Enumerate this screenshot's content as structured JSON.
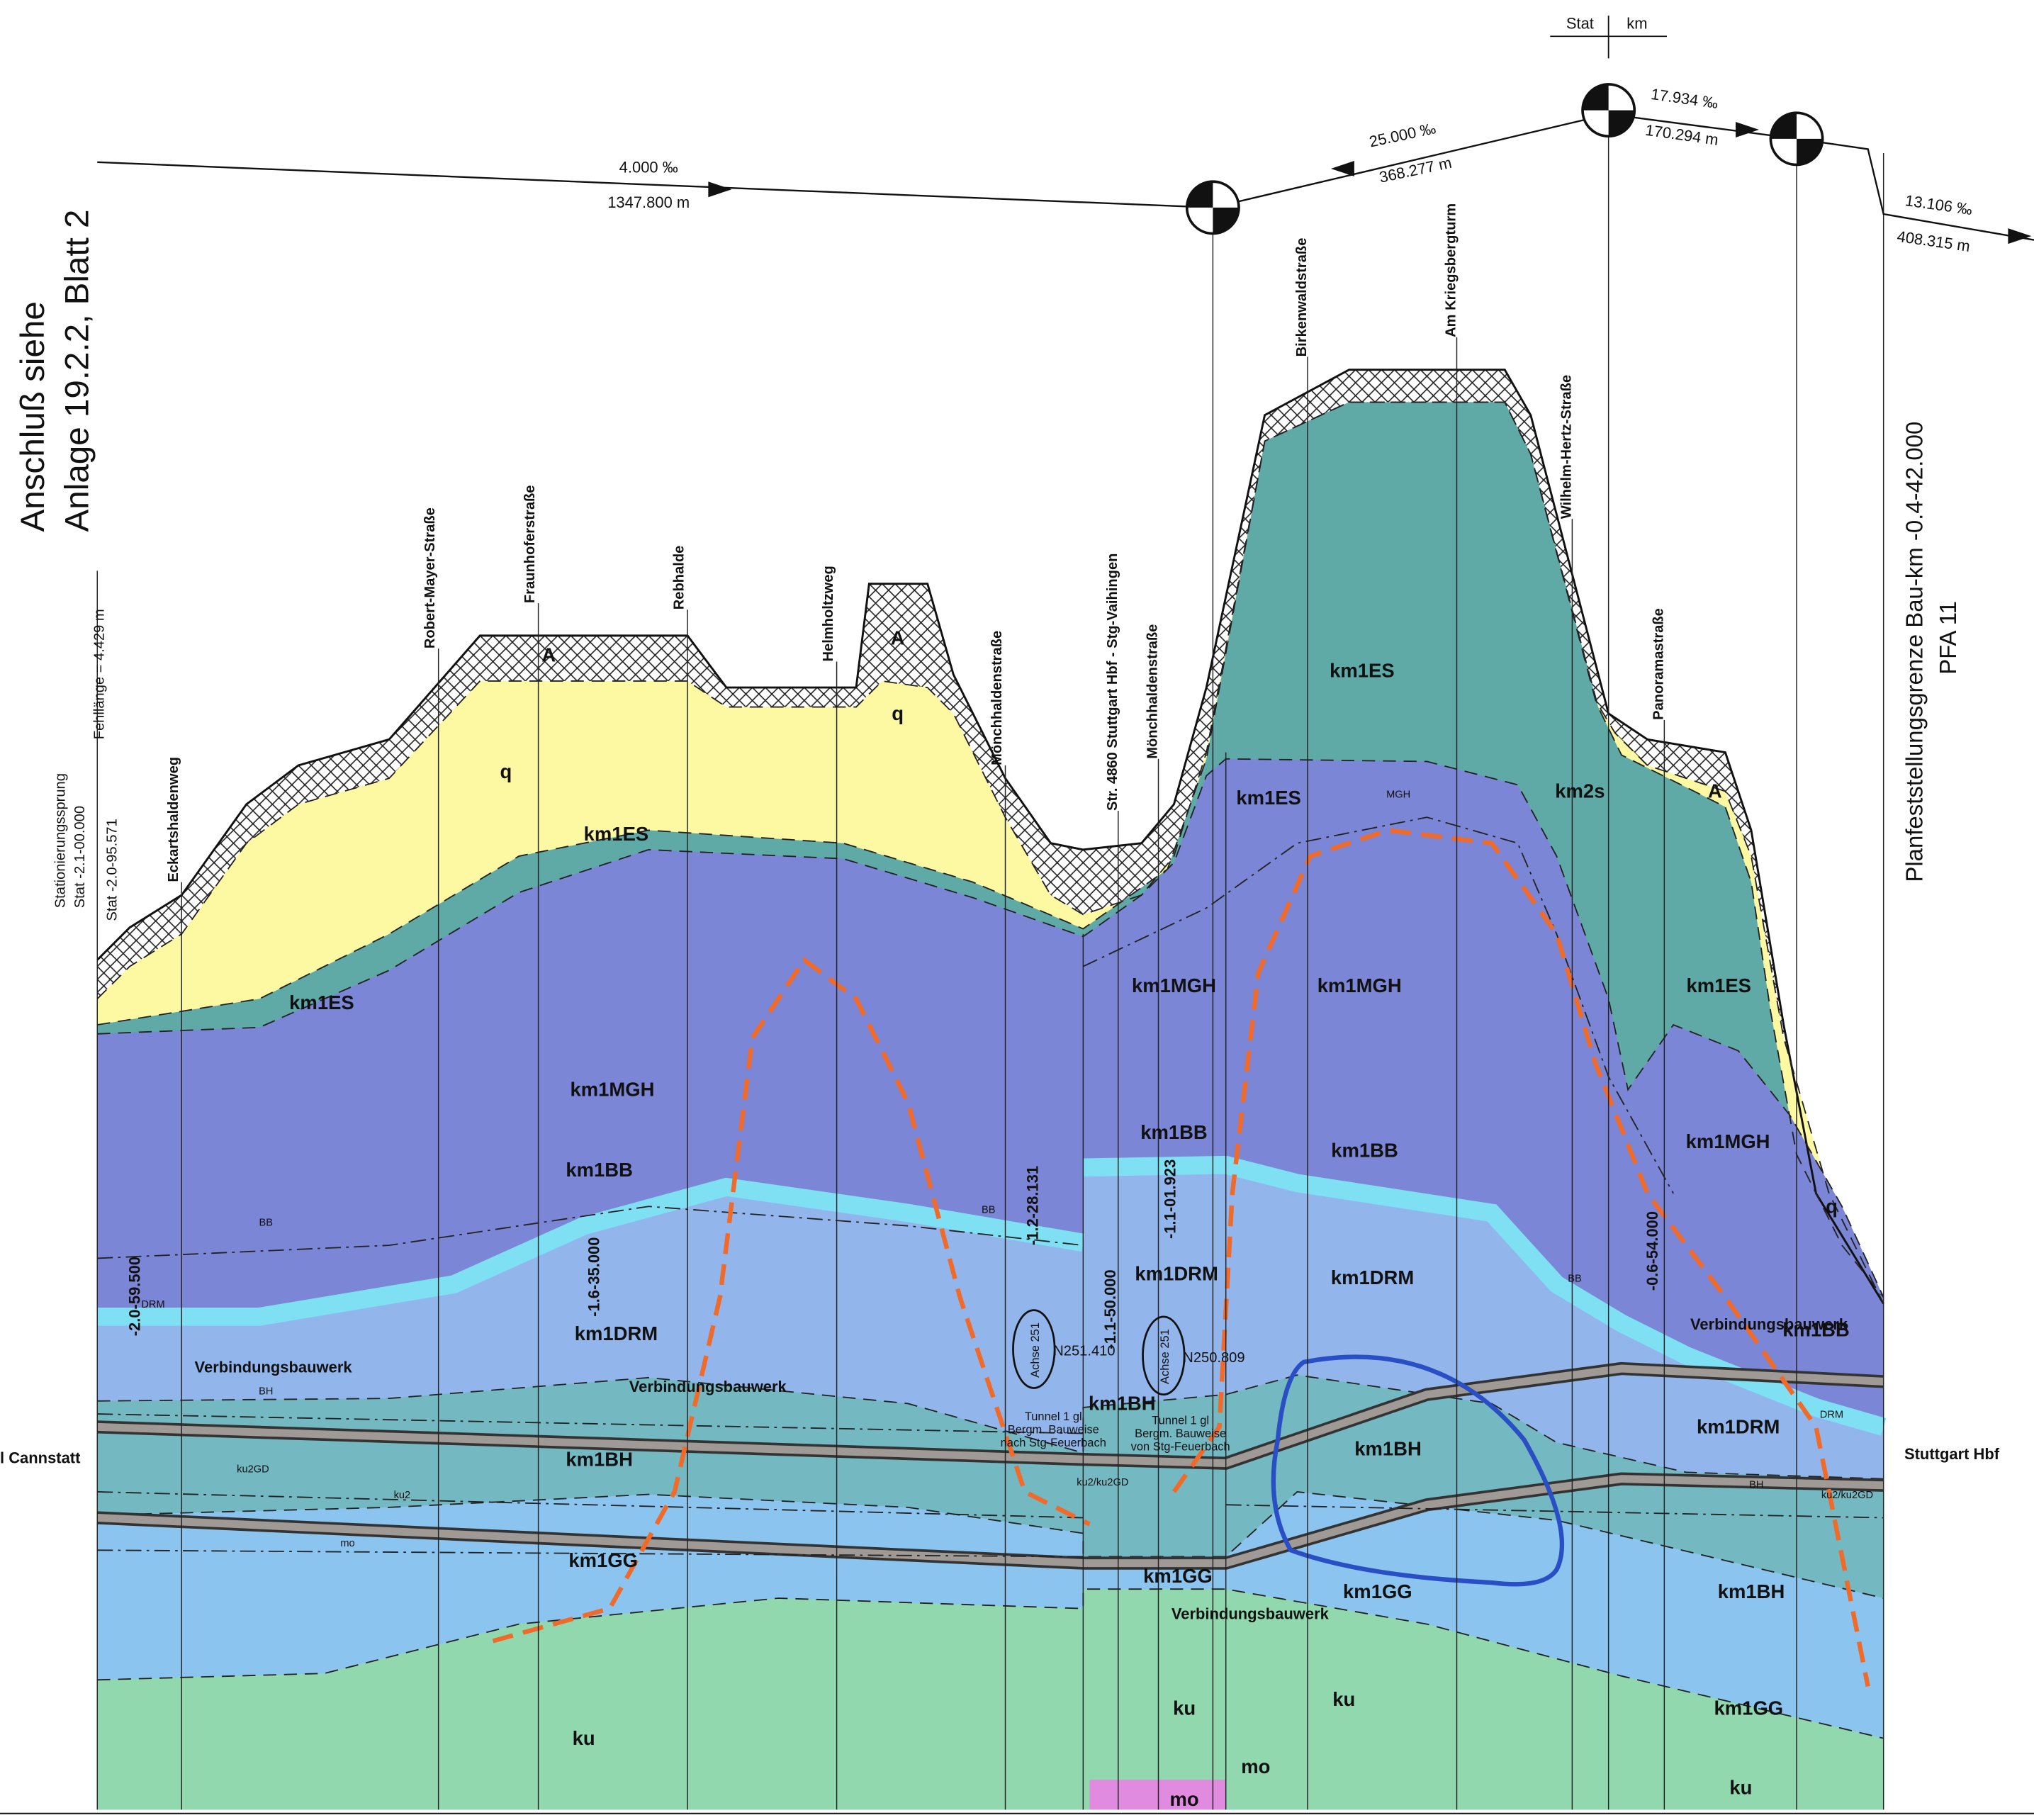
{
  "header": {
    "stat": "Stat",
    "km": "km"
  },
  "gradients": [
    {
      "slope": "4.000 ‰",
      "length": "1347.800 m"
    },
    {
      "slope": "25.000 ‰",
      "length": "368.277 m"
    },
    {
      "slope": "17.934 ‰",
      "length": "170.294 m"
    },
    {
      "slope": "13.106 ‰",
      "length": "408.315 m"
    }
  ],
  "connection_note": [
    "Anschluß siehe",
    "Anlage 19.2.2, Blatt 2"
  ],
  "missing_length": "Fehllänge = 4.429 m",
  "station_jump": [
    "Stationierungssprung",
    "Stat -2.1-00.000",
    "Stat -2.0-95.571"
  ],
  "boundary": [
    "Planfeststellungsgrenze Bau-km -0.4-42.000",
    "PFA 11"
  ],
  "streets": [
    "Eckartshaldenweg",
    "Robert-Mayer-Straße",
    "Fraunhoferstraße",
    "Rebhalde",
    "Helmholtzweg",
    "Mönchhaldenstraße",
    "Str. 4860 Stuttgart Hbf - Stg-Vaihingen",
    "Mönchhaldenstraße",
    "Birkenwaldstraße",
    "Am Kriegsbergturm",
    "Wilhelm-Hertz-Straße",
    "Panoramastraße"
  ],
  "endpoints": [
    "l Cannstatt",
    "Stuttgart Hbf"
  ],
  "layer_labels": [
    "q",
    "q",
    "q",
    "km1ES",
    "km1ES",
    "km1ES",
    "km1ES",
    "km1ES",
    "km1MGH",
    "km1MGH",
    "km1MGH",
    "km1MGH",
    "km1BB",
    "km1BB",
    "km1BB",
    "km1BB",
    "km1DRM",
    "km1DRM",
    "km1DRM",
    "km1DRM",
    "km1BH",
    "km1BH",
    "km1BH",
    "km1BH",
    "km1GG",
    "km1GG",
    "km1GG",
    "km1GG",
    "ku",
    "ku",
    "ku",
    "ku",
    "mo",
    "mo",
    "km2s",
    "A",
    "A",
    "A"
  ],
  "structures": [
    "Verbindungsbauwerk",
    "Verbindungsbauwerk",
    "Verbindungsbauwerk",
    "Verbindungsbauwerk"
  ],
  "stations": [
    "-2.0-59.500",
    "-1.6-35.000",
    "-1.2-28.131",
    "-1.1-50.000",
    "-1.1-01.923",
    "-0.6-54.000"
  ],
  "axes": [
    {
      "name": "Achse 251",
      "station": "N251.410"
    },
    {
      "name": "Achse 251",
      "station": "N250.809"
    }
  ],
  "tunnels": [
    [
      "Tunnel 1 gl",
      "Bergm. Bauweise",
      "nach Stg-Feuerbach"
    ],
    [
      "Tunnel 1 gl",
      "Bergm. Bauweise",
      "von Stg-Feuerbach"
    ]
  ],
  "markers": [
    "BB",
    "BB",
    "BB",
    "DRM",
    "DRM",
    "BH",
    "BH",
    "ku2GD",
    "ku2",
    "mo",
    "MGH",
    "ku2/ku2GD",
    "ku2/ku2GD"
  ]
}
